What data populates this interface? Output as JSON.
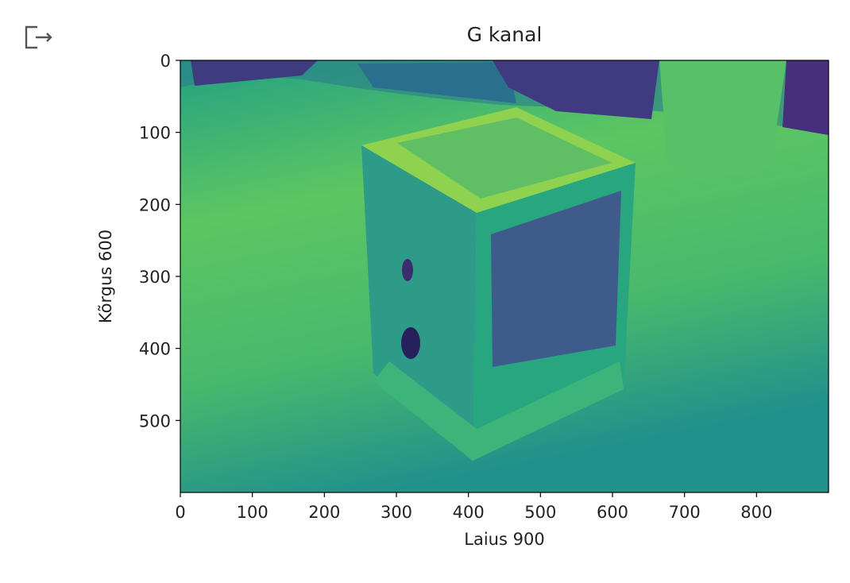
{
  "chart_data": {
    "type": "image",
    "title": "G kanal",
    "xlabel": "Laius 900",
    "ylabel": "Kõrgus 600",
    "xlim": [
      0,
      900
    ],
    "ylim": [
      600,
      0
    ],
    "xticks": [
      0,
      100,
      200,
      300,
      400,
      500,
      600,
      700,
      800
    ],
    "yticks": [
      0,
      100,
      200,
      300,
      400,
      500
    ],
    "colormap": "viridis"
  }
}
